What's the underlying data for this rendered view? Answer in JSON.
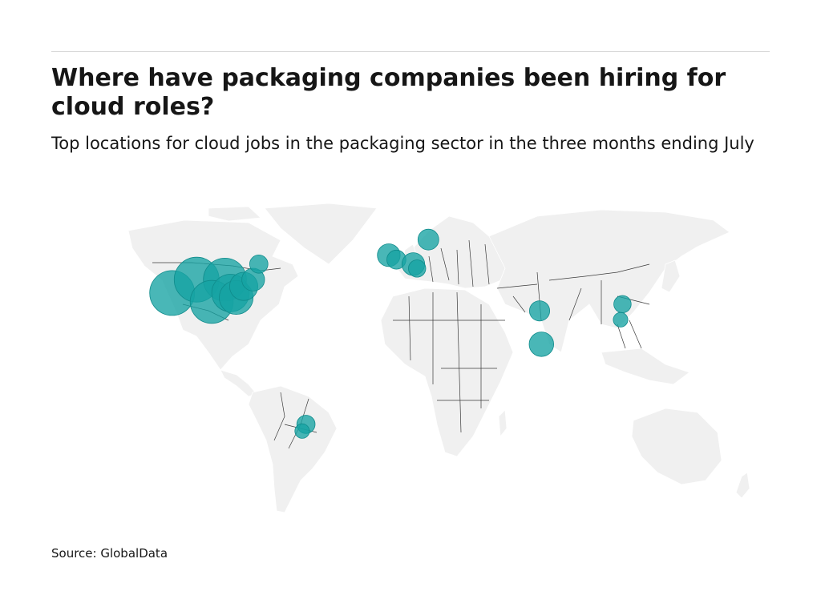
{
  "header": {
    "title": "Where have packaging companies been hiring for cloud roles?",
    "subtitle": "Top locations for cloud jobs in the packaging sector in the three months ending July"
  },
  "footer": {
    "source": "Source: GlobalData"
  },
  "map": {
    "base_color": "#f0f0f0",
    "bubble_color": "#16a3a3",
    "bubble_edge_color": "#0f8b8b",
    "border_color": "#3a3a3a",
    "bubbles": [
      {
        "location": "Western US",
        "lon": -118,
        "lat": 36,
        "size": 1.0
      },
      {
        "location": "Central US",
        "lon": -105,
        "lat": 42,
        "size": 1.0
      },
      {
        "location": "Midwest US",
        "lon": -90,
        "lat": 42,
        "size": 0.95
      },
      {
        "location": "Southern US",
        "lon": -97,
        "lat": 32,
        "size": 0.95
      },
      {
        "location": "Eastern US",
        "lon": -87,
        "lat": 36,
        "size": 0.8
      },
      {
        "location": "Southeast US",
        "lon": -84,
        "lat": 34,
        "size": 0.7
      },
      {
        "location": "Northeast US",
        "lon": -80,
        "lat": 39,
        "size": 0.55
      },
      {
        "location": "Great Lakes",
        "lon": -75,
        "lat": 42,
        "size": 0.4
      },
      {
        "location": "Canada",
        "lon": -72,
        "lat": 49,
        "size": 0.28
      },
      {
        "location": "United Kingdom",
        "lon": -3,
        "lat": 53,
        "size": 0.4
      },
      {
        "location": "England",
        "lon": 1,
        "lat": 51,
        "size": 0.3
      },
      {
        "location": "Sweden",
        "lon": 18,
        "lat": 60,
        "size": 0.35
      },
      {
        "location": "Germany",
        "lon": 10,
        "lat": 49,
        "size": 0.4
      },
      {
        "location": "Central Europe",
        "lon": 12,
        "lat": 47,
        "size": 0.25
      },
      {
        "location": "Northern India",
        "lon": 77,
        "lat": 28,
        "size": 0.33
      },
      {
        "location": "Southern India",
        "lon": 78,
        "lat": 13,
        "size": 0.45
      },
      {
        "location": "China",
        "lon": 121,
        "lat": 31,
        "size": 0.25
      },
      {
        "location": "Taiwan",
        "lon": 120,
        "lat": 24,
        "size": 0.18
      },
      {
        "location": "Brazil",
        "lon": -47,
        "lat": -23,
        "size": 0.28
      },
      {
        "location": "Brazil South",
        "lon": -49,
        "lat": -26,
        "size": 0.18
      }
    ]
  }
}
